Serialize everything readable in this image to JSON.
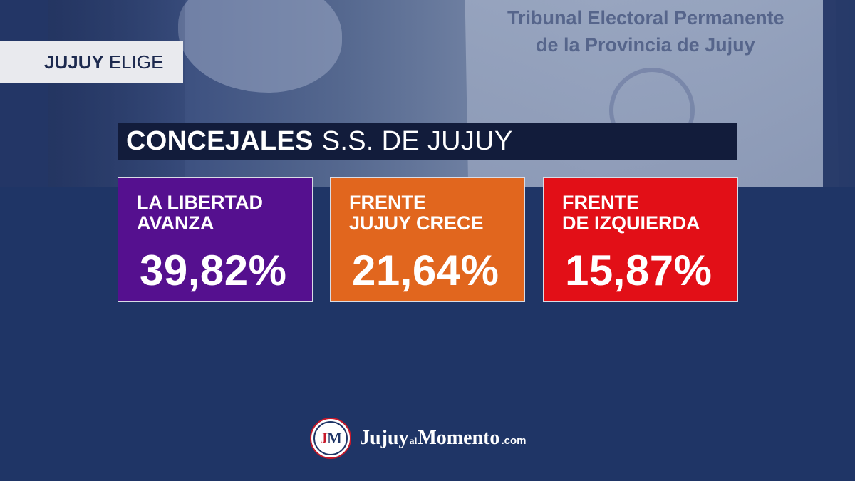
{
  "tag": {
    "bold": "JUJUY",
    "regular": "ELIGE"
  },
  "background": {
    "paper_line_1": "Tribunal Electoral Permanente",
    "paper_line_2": "de la Provincia de Jujuy"
  },
  "title": {
    "bold": "CONCEJALES",
    "regular": "S.S. DE JUJUY"
  },
  "results": [
    {
      "name": "LA LIBERTAD\nAVANZA",
      "percent": "39,82%",
      "color": "#55108f"
    },
    {
      "name": "FRENTE\nJUJUY CRECE",
      "percent": "21,64%",
      "color": "#e1661e"
    },
    {
      "name": "FRENTE\nDE IZQUIERDA",
      "percent": "15,87%",
      "color": "#e20f17"
    }
  ],
  "logo": {
    "badge_j": "J",
    "badge_m": "M",
    "brand_part1": "Jujuy",
    "brand_part2": "al",
    "brand_part3": "Momento",
    "brand_part4": ".com"
  },
  "colors": {
    "background": "#1f3566",
    "title_bar": "#121c3b",
    "tag_bg": "#e9eaee"
  }
}
